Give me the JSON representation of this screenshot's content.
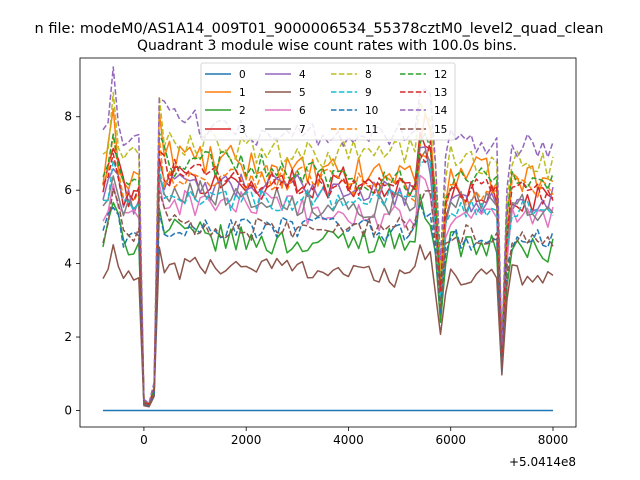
{
  "suptitle": "n file: modeM0/AS1A14_009T01_9000006534_55378cztM0_level2_quad_clean",
  "chart_data": {
    "type": "line",
    "title": "Quadrant 3 module wise count rates with 100.0s bins.",
    "xlabel": "",
    "ylabel": "",
    "offset_text": "+5.0414e8",
    "xlim": [
      -1250,
      8450
    ],
    "ylim": [
      -0.45,
      9.6
    ],
    "xticks": [
      0,
      2000,
      4000,
      6000,
      8000
    ],
    "xtick_labels": [
      "0",
      "2000",
      "4000",
      "6000",
      "8000"
    ],
    "yticks": [
      0,
      2,
      4,
      6,
      8
    ],
    "ytick_labels": [
      "0",
      "2",
      "4",
      "6",
      "8"
    ],
    "grid": false,
    "legend_position": "top-center",
    "legend_columns": 4,
    "series": [
      {
        "name": "0",
        "color": "#1f77b4",
        "dash": "solid",
        "level": 0.0,
        "amp": 0.0
      },
      {
        "name": "1",
        "color": "#ff7f0e",
        "dash": "solid",
        "level": 6.3,
        "amp": 0.45
      },
      {
        "name": "2",
        "color": "#2ca02c",
        "dash": "solid",
        "level": 4.45,
        "amp": 0.35
      },
      {
        "name": "3",
        "color": "#d62728",
        "dash": "solid",
        "level": 5.9,
        "amp": 0.4
      },
      {
        "name": "4",
        "color": "#9467bd",
        "dash": "solid",
        "level": 5.75,
        "amp": 0.35
      },
      {
        "name": "5",
        "color": "#8c564b",
        "dash": "solid",
        "level": 3.65,
        "amp": 0.3
      },
      {
        "name": "6",
        "color": "#e377c2",
        "dash": "solid",
        "level": 5.2,
        "amp": 0.35
      },
      {
        "name": "7",
        "color": "#7f7f7f",
        "dash": "solid",
        "level": 5.5,
        "amp": 0.35
      },
      {
        "name": "8",
        "color": "#bcbd22",
        "dash": "dashed",
        "level": 6.75,
        "amp": 0.4
      },
      {
        "name": "9",
        "color": "#17becf",
        "dash": "dashed",
        "level": 5.5,
        "amp": 0.3
      },
      {
        "name": "10",
        "color": "#1f77b4",
        "dash": "dashed",
        "level": 4.7,
        "amp": 0.3
      },
      {
        "name": "11",
        "color": "#ff7f0e",
        "dash": "dashed",
        "level": 5.95,
        "amp": 0.35
      },
      {
        "name": "12",
        "color": "#2ca02c",
        "dash": "dashed",
        "level": 6.2,
        "amp": 0.35
      },
      {
        "name": "13",
        "color": "#d62728",
        "dash": "dashed",
        "level": 5.9,
        "amp": 0.35
      },
      {
        "name": "14",
        "color": "#9467bd",
        "dash": "dashed",
        "level": 7.25,
        "amp": 0.35
      },
      {
        "name": "15",
        "color": "#8c564b",
        "dash": "dashed",
        "level": 4.75,
        "amp": 0.3
      }
    ]
  }
}
